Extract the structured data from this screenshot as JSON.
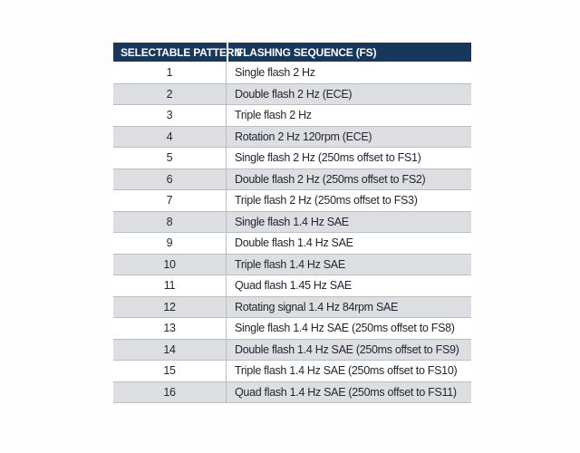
{
  "table": {
    "columns": [
      {
        "label": "SELECTABLE PATTERN"
      },
      {
        "label": "FLASHING SEQUENCE (FS)"
      }
    ],
    "rows": [
      {
        "pattern": "1",
        "sequence": "Single flash 2 Hz"
      },
      {
        "pattern": "2",
        "sequence": "Double flash 2 Hz (ECE)"
      },
      {
        "pattern": "3",
        "sequence": "Triple flash 2 Hz"
      },
      {
        "pattern": "4",
        "sequence": "Rotation 2 Hz 120rpm (ECE)"
      },
      {
        "pattern": "5",
        "sequence": "Single flash 2 Hz (250ms offset to FS1)"
      },
      {
        "pattern": "6",
        "sequence": "Double flash 2 Hz (250ms offset to FS2)"
      },
      {
        "pattern": "7",
        "sequence": "Triple flash 2 Hz (250ms offset to FS3)"
      },
      {
        "pattern": "8",
        "sequence": "Single flash 1.4 Hz SAE"
      },
      {
        "pattern": "9",
        "sequence": "Double flash 1.4 Hz SAE"
      },
      {
        "pattern": "10",
        "sequence": "Triple flash 1.4 Hz SAE"
      },
      {
        "pattern": "11",
        "sequence": "Quad flash 1.45 Hz SAE"
      },
      {
        "pattern": "12",
        "sequence": "Rotating signal 1.4 Hz 84rpm SAE"
      },
      {
        "pattern": "13",
        "sequence": "Single flash 1.4 Hz SAE (250ms offset to FS8)"
      },
      {
        "pattern": "14",
        "sequence": "Double flash 1.4 Hz SAE (250ms offset to FS9)"
      },
      {
        "pattern": "15",
        "sequence": "Triple flash 1.4 Hz SAE (250ms offset to FS10)"
      },
      {
        "pattern": "16",
        "sequence": "Quad flash 1.4 Hz SAE (250ms offset to FS11)"
      }
    ]
  },
  "colors": {
    "page_bg": "#fefefe",
    "header_bg": "#17375d",
    "header_text": "#ffffff",
    "row_bg": "#ffffff",
    "row_alt_bg": "#dcdee2",
    "row_text": "#22262e",
    "grid_line": "#b9bec4"
  }
}
